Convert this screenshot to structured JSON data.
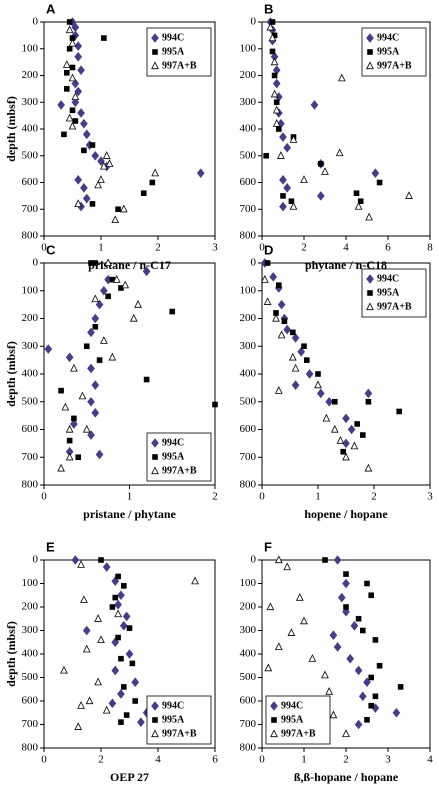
{
  "chart_data": [
    {
      "type": "scatter",
      "label": "A",
      "ylabel": "depth (mbsf)",
      "xlabel": "pristane / n-C17",
      "xlim": [
        0,
        3
      ],
      "xticks": [
        0,
        1,
        2,
        3
      ],
      "ylim": [
        0,
        800
      ],
      "yticks": [
        0,
        100,
        200,
        300,
        400,
        500,
        600,
        700,
        800
      ],
      "y_inverted": true,
      "legend": "upper right",
      "series": [
        {
          "name": "994C",
          "color": "#4b3a8c",
          "marker": "diamond",
          "x": [
            0.5,
            0.55,
            0.55,
            0.6,
            0.6,
            0.65,
            0.55,
            0.6,
            0.55,
            0.3,
            0.65,
            0.7,
            0.75,
            0.8,
            0.9,
            1.0,
            1.1,
            2.75,
            0.6,
            0.7,
            0.75,
            0.65
          ],
          "y": [
            0,
            20,
            50,
            90,
            130,
            180,
            230,
            260,
            300,
            310,
            340,
            380,
            420,
            460,
            500,
            520,
            540,
            565,
            590,
            620,
            660,
            690
          ]
        },
        {
          "name": "995A",
          "color": "#000000",
          "marker": "square",
          "x": [
            0.45,
            0.5,
            0.45,
            0.5,
            0.4,
            1.05,
            0.4,
            0.5,
            0.55,
            0.35,
            0.85,
            0.7,
            1.9,
            1.75,
            0.85,
            1.3
          ],
          "y": [
            0,
            60,
            100,
            170,
            190,
            60,
            250,
            330,
            370,
            420,
            460,
            480,
            600,
            640,
            680,
            700
          ]
        },
        {
          "name": "997A+B",
          "color": "#ffffff",
          "marker": "triangle",
          "x": [
            0.45,
            0.5,
            0.4,
            0.5,
            0.55,
            0.45,
            0.5,
            1.1,
            1.05,
            1.15,
            1.95,
            1.0,
            0.95,
            1.4,
            1.25,
            0.6
          ],
          "y": [
            30,
            80,
            160,
            210,
            280,
            360,
            390,
            500,
            540,
            530,
            565,
            590,
            610,
            700,
            740,
            680
          ]
        }
      ]
    },
    {
      "type": "scatter",
      "label": "B",
      "xlabel": "phytane / n-C18",
      "xlim": [
        0,
        8
      ],
      "xticks": [
        0,
        2,
        4,
        6,
        8
      ],
      "ylim": [
        0,
        800
      ],
      "yticks": [
        0,
        100,
        200,
        300,
        400,
        500,
        600,
        700,
        800
      ],
      "y_inverted": true,
      "legend": "upper right",
      "series": [
        {
          "name": "994C",
          "color": "#4b3a8c",
          "marker": "diamond",
          "x": [
            0.4,
            0.5,
            0.5,
            0.6,
            0.7,
            0.7,
            0.8,
            2.5,
            0.8,
            0.9,
            1.0,
            1.2,
            2.8,
            5.4,
            1.0,
            1.2,
            2.8,
            1.0
          ],
          "y": [
            0,
            30,
            70,
            130,
            180,
            230,
            280,
            310,
            340,
            380,
            430,
            470,
            530,
            565,
            590,
            620,
            650,
            690
          ]
        },
        {
          "name": "995A",
          "color": "#000000",
          "marker": "square",
          "x": [
            0.5,
            0.6,
            0.5,
            0.6,
            0.7,
            0.8,
            1.5,
            0.2,
            2.8,
            5.6,
            4.5,
            4.7,
            1.4,
            1.0
          ],
          "y": [
            0,
            50,
            110,
            200,
            300,
            400,
            430,
            500,
            530,
            600,
            640,
            670,
            670,
            650
          ]
        },
        {
          "name": "997A+B",
          "color": "#ffffff",
          "marker": "triangle",
          "x": [
            0.4,
            0.5,
            0.6,
            3.8,
            0.6,
            0.7,
            0.7,
            1.5,
            3.7,
            3.0,
            2.0,
            7.0,
            4.6,
            5.1,
            1.5,
            0.9
          ],
          "y": [
            20,
            60,
            150,
            210,
            270,
            330,
            380,
            440,
            490,
            560,
            590,
            650,
            690,
            730,
            690,
            500
          ]
        }
      ]
    },
    {
      "type": "scatter",
      "label": "C",
      "ylabel": "depth (mbsf)",
      "xlabel": "pristane / phytane",
      "xlim": [
        0,
        2
      ],
      "xticks": [
        0,
        1,
        2
      ],
      "ylim": [
        0,
        800
      ],
      "yticks": [
        0,
        100,
        200,
        300,
        400,
        500,
        600,
        700,
        800
      ],
      "y_inverted": true,
      "legend": "lower right",
      "series": [
        {
          "name": "994C",
          "color": "#4b3a8c",
          "marker": "diamond",
          "x": [
            1.2,
            0.75,
            0.7,
            0.65,
            0.6,
            0.55,
            0.05,
            0.3,
            0.55,
            0.6,
            0.55,
            0.6,
            0.35,
            0.55,
            0.65,
            0.3
          ],
          "y": [
            30,
            60,
            100,
            150,
            200,
            250,
            310,
            340,
            380,
            440,
            500,
            540,
            580,
            620,
            690,
            680
          ]
        },
        {
          "name": "995A",
          "color": "#000000",
          "marker": "square",
          "x": [
            0.55,
            0.6,
            0.8,
            0.9,
            0.75,
            1.5,
            0.6,
            0.5,
            0.65,
            1.2,
            2.0,
            0.2,
            0.35,
            0.3,
            0.4
          ],
          "y": [
            0,
            0,
            60,
            90,
            120,
            175,
            230,
            300,
            350,
            420,
            510,
            460,
            560,
            640,
            700
          ]
        },
        {
          "name": "997A+B",
          "color": "#ffffff",
          "marker": "triangle",
          "x": [
            0.75,
            0.85,
            0.95,
            0.6,
            1.1,
            1.05,
            0.7,
            0.35,
            0.45,
            0.25,
            0.3,
            0.5,
            0.3,
            0.2,
            0.8
          ],
          "y": [
            0,
            60,
            80,
            130,
            150,
            200,
            280,
            380,
            480,
            520,
            600,
            600,
            700,
            740,
            340
          ]
        }
      ]
    },
    {
      "type": "scatter",
      "label": "D",
      "xlabel": "hopene / hopane",
      "xlim": [
        0,
        3
      ],
      "xticks": [
        0,
        1,
        2,
        3
      ],
      "ylim": [
        0,
        800
      ],
      "yticks": [
        0,
        100,
        200,
        300,
        400,
        500,
        600,
        700,
        800
      ],
      "y_inverted": true,
      "legend": "upper right",
      "series": [
        {
          "name": "994C",
          "color": "#4b3a8c",
          "marker": "diamond",
          "x": [
            0.05,
            0.2,
            0.3,
            0.35,
            0.4,
            0.45,
            0.6,
            0.7,
            0.85,
            0.6,
            1.05,
            1.2,
            1.9,
            1.5,
            1.6,
            1.5
          ],
          "y": [
            0,
            50,
            90,
            150,
            200,
            240,
            270,
            320,
            400,
            440,
            470,
            500,
            470,
            560,
            600,
            650
          ]
        },
        {
          "name": "995A",
          "color": "#000000",
          "marker": "square",
          "x": [
            0.1,
            0.3,
            0.25,
            0.4,
            0.55,
            0.75,
            0.8,
            1.0,
            1.3,
            1.9,
            2.45,
            1.7,
            1.8,
            1.45
          ],
          "y": [
            0,
            80,
            180,
            210,
            250,
            300,
            350,
            400,
            500,
            500,
            535,
            580,
            620,
            680
          ]
        },
        {
          "name": "997A+B",
          "color": "#ffffff",
          "marker": "triangle",
          "x": [
            0.05,
            0.1,
            0.25,
            0.35,
            0.55,
            0.6,
            0.3,
            1.0,
            1.15,
            1.3,
            1.4,
            1.5,
            1.65,
            1.9
          ],
          "y": [
            60,
            140,
            200,
            260,
            340,
            380,
            460,
            440,
            560,
            600,
            640,
            700,
            660,
            740
          ]
        }
      ]
    },
    {
      "type": "scatter",
      "label": "E",
      "ylabel": "depth (mbsf)",
      "xlabel": "OEP 27",
      "xlim": [
        0,
        6
      ],
      "xticks": [
        0,
        2,
        4,
        6
      ],
      "ylim": [
        0,
        800
      ],
      "yticks": [
        0,
        100,
        200,
        300,
        400,
        500,
        600,
        700,
        800
      ],
      "y_inverted": true,
      "legend": "lower right",
      "series": [
        {
          "name": "994C",
          "color": "#4b3a8c",
          "marker": "diamond",
          "x": [
            1.1,
            2.2,
            2.5,
            2.7,
            2.6,
            2.9,
            1.5,
            2.8,
            2.5,
            3.0,
            2.5,
            3.2,
            2.7,
            3.6,
            2.4,
            3.4
          ],
          "y": [
            0,
            30,
            90,
            150,
            190,
            240,
            300,
            280,
            350,
            400,
            470,
            520,
            570,
            650,
            610,
            690
          ]
        },
        {
          "name": "995A",
          "color": "#000000",
          "marker": "square",
          "x": [
            2.0,
            2.6,
            2.8,
            2.5,
            2.4,
            3.0,
            2.6,
            2.7,
            3.1,
            2.8,
            3.2,
            2.9,
            2.7
          ],
          "y": [
            0,
            70,
            110,
            160,
            200,
            290,
            330,
            420,
            440,
            540,
            600,
            660,
            690
          ]
        },
        {
          "name": "997A+B",
          "color": "#ffffff",
          "marker": "triangle",
          "x": [
            1.3,
            5.3,
            1.4,
            1.9,
            2.0,
            1.5,
            0.7,
            1.9,
            1.6,
            1.3,
            2.2,
            1.2,
            2.6
          ],
          "y": [
            20,
            90,
            170,
            250,
            340,
            380,
            470,
            520,
            600,
            620,
            640,
            710,
            230
          ]
        }
      ]
    },
    {
      "type": "scatter",
      "label": "F",
      "xlabel": "ß,ß-hopane / hopane",
      "xlim": [
        0,
        4
      ],
      "xticks": [
        0,
        1,
        2,
        3,
        4
      ],
      "ylim": [
        0,
        800
      ],
      "yticks": [
        0,
        100,
        200,
        300,
        400,
        500,
        600,
        700,
        800
      ],
      "y_inverted": true,
      "legend": "lower left",
      "series": [
        {
          "name": "994C",
          "color": "#4b3a8c",
          "marker": "diamond",
          "x": [
            1.8,
            2.0,
            1.9,
            2.0,
            2.2,
            1.7,
            1.8,
            2.1,
            2.3,
            2.5,
            2.4,
            2.7,
            3.2,
            2.3
          ],
          "y": [
            0,
            100,
            160,
            220,
            280,
            320,
            370,
            420,
            470,
            520,
            580,
            630,
            650,
            700
          ]
        },
        {
          "name": "995A",
          "color": "#000000",
          "marker": "square",
          "x": [
            1.5,
            2.0,
            2.5,
            2.6,
            2.0,
            2.3,
            2.4,
            2.7,
            2.8,
            2.6,
            3.3,
            2.7,
            2.6,
            2.5
          ],
          "y": [
            0,
            60,
            100,
            150,
            200,
            250,
            300,
            340,
            450,
            500,
            540,
            580,
            620,
            680
          ]
        },
        {
          "name": "997A+B",
          "color": "#ffffff",
          "marker": "triangle",
          "x": [
            0.4,
            0.6,
            0.2,
            0.9,
            0.7,
            0.4,
            0.15,
            1.2,
            1.5,
            1.6,
            1.3,
            1.7,
            2.0,
            1.0
          ],
          "y": [
            0,
            30,
            200,
            160,
            310,
            370,
            460,
            420,
            490,
            560,
            620,
            660,
            740,
            260
          ]
        }
      ]
    }
  ]
}
